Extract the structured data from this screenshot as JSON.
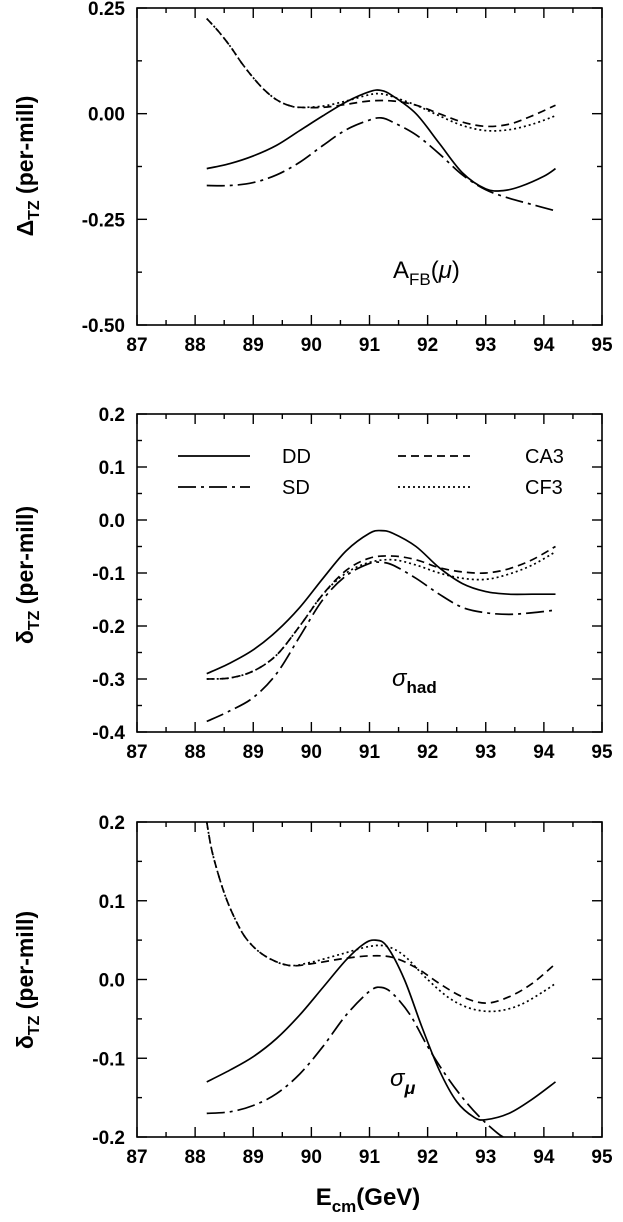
{
  "xlabel": {
    "main": "E",
    "sub": "cm",
    "tail": "(GeV)"
  },
  "chart_data": [
    {
      "type": "line",
      "panel": "top",
      "ylabel": {
        "sym": "Δ",
        "sub": "TZ",
        "tail": " (per-mill)"
      },
      "annotation": {
        "main": "A",
        "sub": "FB",
        "open": "(",
        "greek": "μ",
        "close": ")"
      },
      "xlim": [
        87,
        95
      ],
      "ylim": [
        -0.5,
        0.25
      ],
      "xticks": [
        "87",
        "88",
        "89",
        "90",
        "91",
        "92",
        "93",
        "94",
        "95"
      ],
      "yticks": [
        {
          "v": 0.25,
          "t": "0.25"
        },
        {
          "v": 0.0,
          "t": "0.00"
        },
        {
          "v": -0.25,
          "t": "-0.25"
        },
        {
          "v": -0.5,
          "t": "-0.50"
        }
      ],
      "series": [
        {
          "name": "DD",
          "dash": "",
          "x": [
            88.2,
            88.6,
            89.0,
            89.4,
            89.8,
            90.2,
            90.6,
            91.0,
            91.2,
            91.4,
            91.8,
            92.2,
            92.6,
            93.0,
            93.3,
            93.6,
            94.0,
            94.2
          ],
          "y": [
            -0.13,
            -0.118,
            -0.1,
            -0.075,
            -0.04,
            -0.005,
            0.028,
            0.052,
            0.055,
            0.042,
            0.0,
            -0.07,
            -0.14,
            -0.178,
            -0.182,
            -0.172,
            -0.148,
            -0.13
          ]
        },
        {
          "name": "SD",
          "dash": "18 5 3 5",
          "x": [
            88.2,
            88.6,
            89.0,
            89.4,
            89.8,
            90.2,
            90.6,
            91.0,
            91.2,
            91.4,
            91.8,
            92.2,
            92.6,
            93.0,
            93.4,
            93.8,
            94.2
          ],
          "y": [
            -0.17,
            -0.17,
            -0.163,
            -0.145,
            -0.115,
            -0.075,
            -0.038,
            -0.015,
            -0.01,
            -0.02,
            -0.05,
            -0.095,
            -0.145,
            -0.18,
            -0.2,
            -0.215,
            -0.23
          ]
        },
        {
          "name": "CA3",
          "dash": "8 5",
          "x": [
            88.2,
            88.4,
            88.6,
            88.8,
            89.0,
            89.2,
            89.4,
            89.6,
            89.8,
            90.2,
            90.6,
            91.0,
            91.4,
            91.8,
            92.2,
            92.6,
            93.0,
            93.4,
            93.8,
            94.2
          ],
          "y": [
            0.225,
            0.195,
            0.16,
            0.12,
            0.085,
            0.055,
            0.033,
            0.02,
            0.015,
            0.015,
            0.022,
            0.03,
            0.03,
            0.02,
            0.0,
            -0.02,
            -0.03,
            -0.025,
            -0.005,
            0.02
          ]
        },
        {
          "name": "CF3",
          "dash": "2 3",
          "x": [
            88.2,
            88.4,
            88.6,
            88.8,
            89.0,
            89.2,
            89.4,
            89.6,
            89.8,
            90.2,
            90.6,
            91.0,
            91.2,
            91.4,
            91.8,
            92.2,
            92.6,
            93.0,
            93.4,
            93.8,
            94.2
          ],
          "y": [
            0.225,
            0.195,
            0.16,
            0.12,
            0.085,
            0.055,
            0.033,
            0.02,
            0.015,
            0.018,
            0.03,
            0.045,
            0.047,
            0.04,
            0.02,
            -0.005,
            -0.028,
            -0.04,
            -0.038,
            -0.025,
            -0.005
          ]
        }
      ]
    },
    {
      "type": "line",
      "panel": "middle",
      "ylabel": {
        "sym": "δ",
        "sub": "TZ",
        "tail": " (per-mill)"
      },
      "annotation": {
        "greek": "σ",
        "sub": "had"
      },
      "xlim": [
        87,
        95
      ],
      "ylim": [
        -0.4,
        0.2
      ],
      "xticks": [
        "87",
        "88",
        "89",
        "90",
        "91",
        "92",
        "93",
        "94",
        "95"
      ],
      "yticks": [
        {
          "v": 0.2,
          "t": "0.2"
        },
        {
          "v": 0.1,
          "t": "0.1"
        },
        {
          "v": 0.0,
          "t": "0.0"
        },
        {
          "v": -0.1,
          "t": "-0.1"
        },
        {
          "v": -0.2,
          "t": "-0.2"
        },
        {
          "v": -0.3,
          "t": "-0.3"
        },
        {
          "v": -0.4,
          "t": "-0.4"
        }
      ],
      "legend": [
        {
          "name": "DD",
          "dash": ""
        },
        {
          "name": "SD",
          "dash": "18 5 3 5"
        },
        {
          "name": "CA3",
          "dash": "8 5"
        },
        {
          "name": "CF3",
          "dash": "2 3"
        }
      ],
      "series": [
        {
          "name": "DD",
          "dash": "",
          "x": [
            88.2,
            88.6,
            89.0,
            89.4,
            89.8,
            90.2,
            90.6,
            91.0,
            91.2,
            91.4,
            91.8,
            92.2,
            92.6,
            93.0,
            93.4,
            93.8,
            94.2
          ],
          "y": [
            -0.29,
            -0.27,
            -0.245,
            -0.21,
            -0.165,
            -0.11,
            -0.058,
            -0.025,
            -0.02,
            -0.025,
            -0.05,
            -0.09,
            -0.12,
            -0.135,
            -0.14,
            -0.14,
            -0.14
          ]
        },
        {
          "name": "SD",
          "dash": "18 5 3 5",
          "x": [
            88.2,
            88.6,
            89.0,
            89.4,
            89.8,
            90.2,
            90.6,
            91.0,
            91.2,
            91.4,
            91.8,
            92.2,
            92.6,
            93.0,
            93.4,
            93.8,
            94.2
          ],
          "y": [
            -0.38,
            -0.36,
            -0.335,
            -0.29,
            -0.22,
            -0.15,
            -0.105,
            -0.082,
            -0.08,
            -0.085,
            -0.11,
            -0.14,
            -0.165,
            -0.175,
            -0.178,
            -0.175,
            -0.17
          ]
        },
        {
          "name": "CA3",
          "dash": "8 5",
          "x": [
            88.2,
            88.6,
            89.0,
            89.4,
            89.8,
            90.2,
            90.6,
            91.0,
            91.4,
            91.8,
            92.2,
            92.6,
            93.0,
            93.4,
            93.8,
            94.2
          ],
          "y": [
            -0.3,
            -0.298,
            -0.285,
            -0.255,
            -0.2,
            -0.14,
            -0.095,
            -0.072,
            -0.068,
            -0.075,
            -0.09,
            -0.098,
            -0.1,
            -0.092,
            -0.075,
            -0.05
          ]
        },
        {
          "name": "CF3",
          "dash": "2 3",
          "x": [
            88.2,
            88.6,
            89.0,
            89.4,
            89.8,
            90.2,
            90.6,
            91.0,
            91.4,
            91.8,
            92.2,
            92.6,
            93.0,
            93.4,
            93.8,
            94.2
          ],
          "y": [
            -0.3,
            -0.298,
            -0.285,
            -0.255,
            -0.2,
            -0.14,
            -0.1,
            -0.08,
            -0.075,
            -0.085,
            -0.1,
            -0.11,
            -0.112,
            -0.102,
            -0.085,
            -0.06
          ]
        }
      ]
    },
    {
      "type": "line",
      "panel": "bottom",
      "ylabel": {
        "sym": "δ",
        "sub": "TZ",
        "tail": " (per-mill)"
      },
      "annotation": {
        "greek": "σ",
        "sub": "μ"
      },
      "xlim": [
        87,
        95
      ],
      "ylim": [
        -0.2,
        0.2
      ],
      "xticks": [
        "87",
        "88",
        "89",
        "90",
        "91",
        "92",
        "93",
        "94",
        "95"
      ],
      "yticks": [
        {
          "v": 0.2,
          "t": "0.2"
        },
        {
          "v": 0.1,
          "t": "0.1"
        },
        {
          "v": 0.0,
          "t": "0.0"
        },
        {
          "v": -0.1,
          "t": "-0.1"
        },
        {
          "v": -0.2,
          "t": "-0.2"
        }
      ],
      "series": [
        {
          "name": "DD",
          "dash": "",
          "x": [
            88.2,
            88.6,
            89.0,
            89.4,
            89.8,
            90.2,
            90.6,
            90.9,
            91.1,
            91.3,
            91.6,
            91.9,
            92.2,
            92.5,
            92.8,
            93.0,
            93.4,
            93.8,
            94.2
          ],
          "y": [
            -0.13,
            -0.115,
            -0.098,
            -0.075,
            -0.045,
            -0.01,
            0.025,
            0.045,
            0.05,
            0.042,
            0.0,
            -0.06,
            -0.115,
            -0.155,
            -0.175,
            -0.178,
            -0.17,
            -0.152,
            -0.13
          ]
        },
        {
          "name": "SD",
          "dash": "18 5 3 5",
          "x": [
            88.2,
            88.6,
            89.0,
            89.4,
            89.8,
            90.2,
            90.6,
            91.0,
            91.2,
            91.4,
            91.7,
            92.0,
            92.3,
            92.6,
            92.9,
            93.2,
            93.3
          ],
          "y": [
            -0.17,
            -0.168,
            -0.16,
            -0.145,
            -0.12,
            -0.085,
            -0.045,
            -0.015,
            -0.01,
            -0.018,
            -0.045,
            -0.085,
            -0.12,
            -0.15,
            -0.175,
            -0.195,
            -0.2
          ]
        },
        {
          "name": "CA3",
          "dash": "8 5",
          "x": [
            88.2,
            88.3,
            88.5,
            88.7,
            88.9,
            89.2,
            89.6,
            90.0,
            90.5,
            91.0,
            91.4,
            91.8,
            92.2,
            92.6,
            93.0,
            93.4,
            93.8,
            94.2
          ],
          "y": [
            0.2,
            0.16,
            0.11,
            0.075,
            0.05,
            0.03,
            0.018,
            0.02,
            0.026,
            0.03,
            0.028,
            0.015,
            -0.005,
            -0.022,
            -0.03,
            -0.022,
            -0.005,
            0.02
          ]
        },
        {
          "name": "CF3",
          "dash": "2 3",
          "x": [
            88.2,
            88.3,
            88.5,
            88.7,
            88.9,
            89.2,
            89.6,
            90.0,
            90.5,
            91.0,
            91.3,
            91.6,
            92.0,
            92.4,
            92.8,
            93.2,
            93.6,
            94.0,
            94.2
          ],
          "y": [
            0.2,
            0.16,
            0.11,
            0.075,
            0.05,
            0.03,
            0.018,
            0.022,
            0.032,
            0.042,
            0.042,
            0.03,
            0.0,
            -0.025,
            -0.038,
            -0.04,
            -0.032,
            -0.015,
            -0.005
          ]
        }
      ]
    }
  ]
}
